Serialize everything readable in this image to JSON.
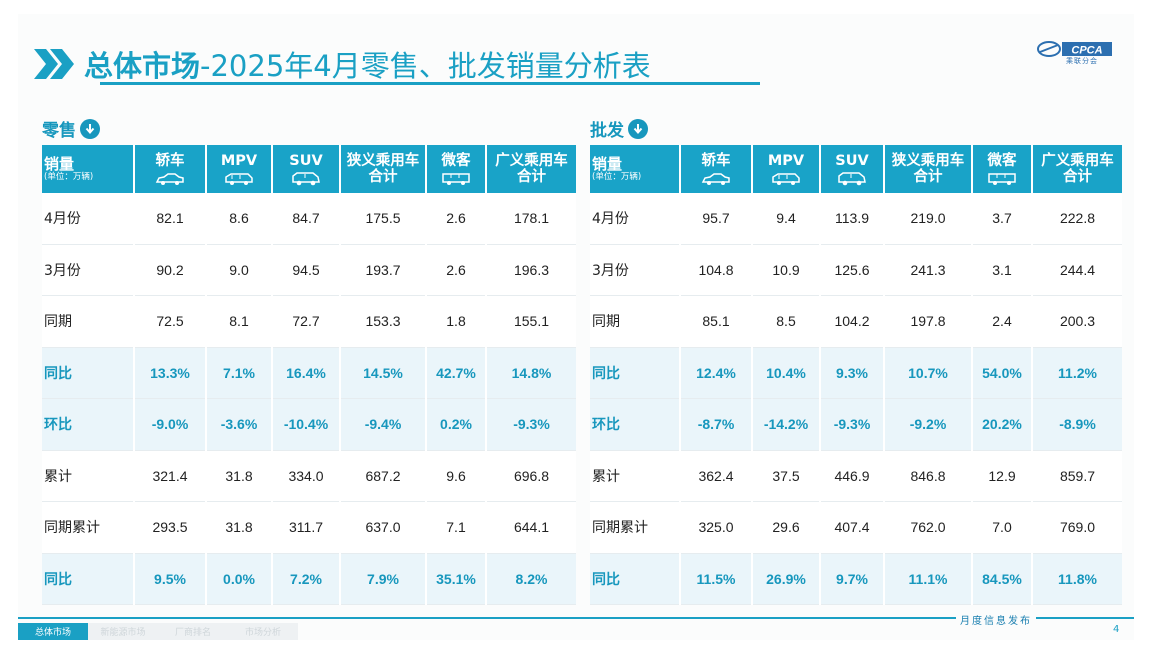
{
  "title": {
    "bold": "总体市场",
    "rest": "-2025年4月零售、批发销量分析表"
  },
  "logo": {
    "text": "CPCA",
    "cn": "乘联分会"
  },
  "retail": {
    "section_label": "零售",
    "header_first": "销量",
    "header_unit": "(单位：万辆)",
    "columns": [
      "轿车",
      "MPV",
      "SUV",
      "狭义乘用车合计",
      "微客",
      "广义乘用车合计"
    ],
    "rows": [
      {
        "label": "4月份",
        "values": [
          "82.1",
          "8.6",
          "84.7",
          "175.5",
          "2.6",
          "178.1"
        ],
        "type": "plain"
      },
      {
        "label": "3月份",
        "values": [
          "90.2",
          "9.0",
          "94.5",
          "193.7",
          "2.6",
          "196.3"
        ],
        "type": "plain"
      },
      {
        "label": "同期",
        "values": [
          "72.5",
          "8.1",
          "72.7",
          "153.3",
          "1.8",
          "155.1"
        ],
        "type": "plain"
      },
      {
        "label": "同比",
        "values": [
          "13.3%",
          "7.1%",
          "16.4%",
          "14.5%",
          "42.7%",
          "14.8%"
        ],
        "type": "pct"
      },
      {
        "label": "环比",
        "values": [
          "-9.0%",
          "-3.6%",
          "-10.4%",
          "-9.4%",
          "0.2%",
          "-9.3%"
        ],
        "type": "pct"
      },
      {
        "label": "累计",
        "values": [
          "321.4",
          "31.8",
          "334.0",
          "687.2",
          "9.6",
          "696.8"
        ],
        "type": "plain"
      },
      {
        "label": "同期累计",
        "values": [
          "293.5",
          "31.8",
          "311.7",
          "637.0",
          "7.1",
          "644.1"
        ],
        "type": "plain"
      },
      {
        "label": "同比",
        "values": [
          "9.5%",
          "0.0%",
          "7.2%",
          "7.9%",
          "35.1%",
          "8.2%"
        ],
        "type": "pct"
      }
    ]
  },
  "wholesale": {
    "section_label": "批发",
    "header_first": "销量",
    "header_unit": "(单位：万辆)",
    "columns": [
      "轿车",
      "MPV",
      "SUV",
      "狭义乘用车合计",
      "微客",
      "广义乘用车合计"
    ],
    "rows": [
      {
        "label": "4月份",
        "values": [
          "95.7",
          "9.4",
          "113.9",
          "219.0",
          "3.7",
          "222.8"
        ],
        "type": "plain"
      },
      {
        "label": "3月份",
        "values": [
          "104.8",
          "10.9",
          "125.6",
          "241.3",
          "3.1",
          "244.4"
        ],
        "type": "plain"
      },
      {
        "label": "同期",
        "values": [
          "85.1",
          "8.5",
          "104.2",
          "197.8",
          "2.4",
          "200.3"
        ],
        "type": "plain"
      },
      {
        "label": "同比",
        "values": [
          "12.4%",
          "10.4%",
          "9.3%",
          "10.7%",
          "54.0%",
          "11.2%"
        ],
        "type": "pct"
      },
      {
        "label": "环比",
        "values": [
          "-8.7%",
          "-14.2%",
          "-9.3%",
          "-9.2%",
          "20.2%",
          "-8.9%"
        ],
        "type": "pct"
      },
      {
        "label": "累计",
        "values": [
          "362.4",
          "37.5",
          "446.9",
          "846.8",
          "12.9",
          "859.7"
        ],
        "type": "plain"
      },
      {
        "label": "同期累计",
        "values": [
          "325.0",
          "29.6",
          "407.4",
          "762.0",
          "7.0",
          "769.0"
        ],
        "type": "plain"
      },
      {
        "label": "同比",
        "values": [
          "11.5%",
          "26.9%",
          "9.7%",
          "11.1%",
          "84.5%",
          "11.8%"
        ],
        "type": "pct"
      }
    ]
  },
  "footer": {
    "tabs": [
      {
        "label": "总体市场",
        "active": true
      },
      {
        "label": "新能源市场",
        "active": false
      },
      {
        "label": "厂商排名",
        "active": false
      },
      {
        "label": "市场分析",
        "active": false
      }
    ],
    "monthly_text": "月度信息发布",
    "page_number": "4"
  },
  "colors": {
    "accent": "#1aa0c4",
    "header_bg": "#19a3c8",
    "pct_row_bg": "#eaf5fa",
    "pct_text": "#1797bd"
  }
}
